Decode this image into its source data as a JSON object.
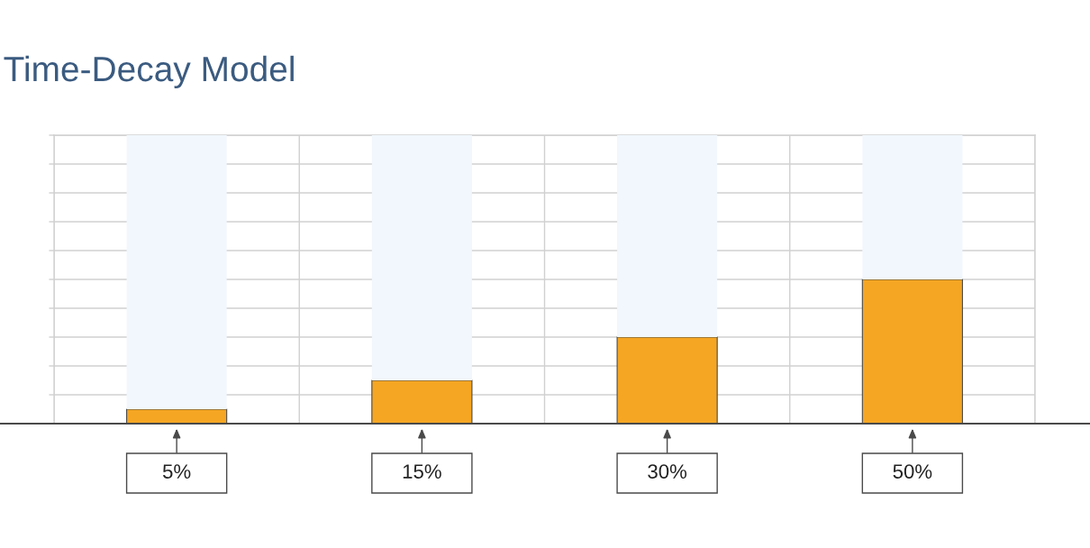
{
  "chart_data": {
    "type": "bar",
    "title": "Time-Decay Model",
    "categories": [
      null,
      null,
      null,
      null
    ],
    "series": [
      {
        "color": "#f5a623",
        "values": [
          5,
          15,
          30,
          50
        ],
        "value_labels": [
          "5%",
          "15%",
          "30%",
          "50%"
        ]
      },
      {
        "color": "#f1f7fd",
        "values": [
          95,
          85,
          70,
          50
        ]
      }
    ],
    "stacked": true,
    "ylim": [
      0,
      100
    ],
    "yticks": [
      {
        "value": 0,
        "label": null
      },
      {
        "value": 10,
        "label": null
      },
      {
        "value": 20,
        "label": null
      },
      {
        "value": 30,
        "label": null
      },
      {
        "value": 40,
        "label": null
      },
      {
        "value": 50,
        "label": null
      },
      {
        "value": 60,
        "label": null
      },
      {
        "value": 70,
        "label": null
      },
      {
        "value": 80,
        "label": null
      },
      {
        "value": 90,
        "label": null
      },
      {
        "value": 100,
        "label": null
      }
    ],
    "grid": true
  }
}
